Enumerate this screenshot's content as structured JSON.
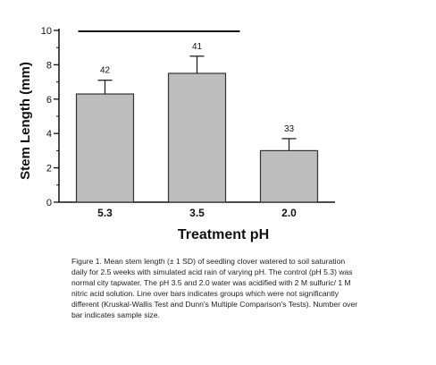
{
  "chart_data": {
    "type": "bar",
    "categories": [
      "5.3",
      "3.5",
      "2.0"
    ],
    "values": [
      6.3,
      7.5,
      3.0
    ],
    "errors": [
      0.8,
      1.0,
      0.7
    ],
    "sample_sizes": [
      "42",
      "41",
      "33"
    ],
    "ylim": [
      0,
      10
    ],
    "yticks": [
      "0",
      "2",
      "4",
      "6",
      "8",
      "10"
    ],
    "ylabel": "Stem Length (mm)",
    "xlabel": "Treatment pH",
    "bar_color": "#bdbdbd",
    "significance_line": {
      "from": "5.3",
      "to": "3.5"
    }
  },
  "caption": {
    "lines": [
      "Figure 1.  Mean stem length (± 1 SD) of seedling clover watered to soil saturation",
      "daily for 2.5 weeks with simulated acid rain of varying pH.  The control (pH 5.3) was",
      "normal city tapwater.  The pH 3.5 and 2.0 water was acidified with 2 M sulfuric/ 1 M",
      "nitric acid solution.  Line over bars indicates groups which were not significantly",
      "different (Kruskal-Wallis Test and Dunn's Multiple Comparison's Tests).  Number over",
      "bar indicates sample size."
    ]
  }
}
